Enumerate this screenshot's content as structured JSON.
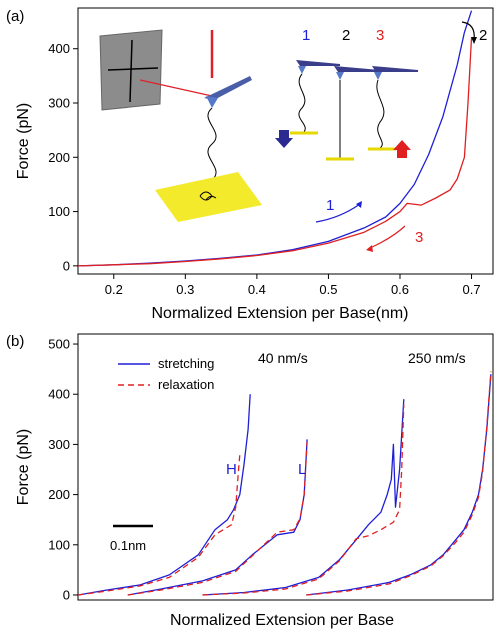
{
  "colors": {
    "stretching": "#1f1fd6",
    "relaxation": "#e02020",
    "black": "#000000",
    "yellow": "#f2ea2a"
  },
  "chart_data": [
    {
      "panel_label": "(a)",
      "type": "line",
      "xlabel": "Normalized Extension per Base(nm)",
      "ylabel": "Force (pN)",
      "xlim": [
        0.15,
        0.73
      ],
      "ylim": [
        -15,
        475
      ],
      "xticks": [
        "0.2",
        "0.3",
        "0.4",
        "0.5",
        "0.6",
        "0.7"
      ],
      "yticks": [
        "0",
        "100",
        "200",
        "300",
        "400"
      ],
      "annotations": {
        "arrow1": "1",
        "arrow2": "2",
        "arrow3": "3"
      },
      "schematic_labels": [
        "1",
        "2",
        "3"
      ],
      "series": [
        {
          "color": "#1f1fd6",
          "x": [
            0.15,
            0.2,
            0.25,
            0.3,
            0.35,
            0.4,
            0.45,
            0.5,
            0.55,
            0.58,
            0.6,
            0.62,
            0.64,
            0.66,
            0.68,
            0.69,
            0.7
          ],
          "y": [
            0,
            2,
            5,
            9,
            14,
            20,
            30,
            45,
            70,
            90,
            115,
            150,
            205,
            275,
            370,
            430,
            470
          ]
        },
        {
          "color": "#e02020",
          "x": [
            0.15,
            0.2,
            0.25,
            0.3,
            0.35,
            0.4,
            0.45,
            0.5,
            0.55,
            0.58,
            0.6,
            0.61,
            0.63,
            0.65,
            0.67,
            0.68,
            0.69,
            0.695,
            0.7
          ],
          "y": [
            0,
            2,
            4,
            8,
            13,
            19,
            28,
            42,
            62,
            82,
            100,
            115,
            112,
            125,
            140,
            160,
            200,
            300,
            420
          ]
        }
      ]
    },
    {
      "panel_label": "(b)",
      "type": "line",
      "xlabel": "Normalized Extension per Base",
      "ylabel": "Force (pN)",
      "xlim": [
        0,
        1
      ],
      "ylim": [
        -10,
        520
      ],
      "yticks": [
        "0",
        "100",
        "200",
        "300",
        "400",
        "500"
      ],
      "legend": {
        "position": "top-left",
        "entries": [
          "stretching",
          "relaxation"
        ]
      },
      "annotations": {
        "rate_slow": "40 nm/s",
        "rate_fast": "250 nm/s",
        "H": "H",
        "L": "L",
        "scale_bar": "0.1nm"
      },
      "series": [
        {
          "name": "stretching",
          "group": "H",
          "color": "#1f1fd6",
          "x": [
            0,
            0.07,
            0.15,
            0.22,
            0.29,
            0.33,
            0.36,
            0.375,
            0.39,
            0.4,
            0.41,
            0.415
          ],
          "y": [
            0,
            10,
            20,
            40,
            80,
            130,
            150,
            170,
            200,
            260,
            330,
            400
          ]
        },
        {
          "name": "relaxation",
          "group": "H",
          "color": "#e02020",
          "x": [
            0,
            0.07,
            0.15,
            0.22,
            0.29,
            0.33,
            0.35,
            0.37,
            0.38,
            0.385,
            0.39
          ],
          "y": [
            0,
            8,
            18,
            35,
            75,
            120,
            130,
            140,
            175,
            230,
            280
          ]
        },
        {
          "name": "stretching",
          "group": "L",
          "color": "#1f1fd6",
          "x": [
            0.12,
            0.2,
            0.3,
            0.38,
            0.42,
            0.48,
            0.52,
            0.535,
            0.545,
            0.552
          ],
          "y": [
            0,
            12,
            28,
            50,
            80,
            120,
            125,
            150,
            200,
            310
          ]
        },
        {
          "name": "relaxation",
          "group": "L",
          "color": "#e02020",
          "x": [
            0.12,
            0.2,
            0.3,
            0.38,
            0.42,
            0.48,
            0.52,
            0.535,
            0.545,
            0.552
          ],
          "y": [
            0,
            10,
            25,
            47,
            78,
            125,
            130,
            152,
            200,
            305
          ]
        },
        {
          "name": "stretching",
          "group": "40 nm/s",
          "color": "#1f1fd6",
          "x": [
            0.3,
            0.4,
            0.5,
            0.58,
            0.63,
            0.67,
            0.7,
            0.73,
            0.745,
            0.755,
            0.76,
            0.765,
            0.775,
            0.785
          ],
          "y": [
            0,
            5,
            15,
            35,
            70,
            110,
            140,
            165,
            200,
            230,
            300,
            175,
            250,
            390
          ]
        },
        {
          "name": "relaxation",
          "group": "40 nm/s",
          "color": "#e02020",
          "x": [
            0.3,
            0.4,
            0.5,
            0.58,
            0.63,
            0.67,
            0.7,
            0.73,
            0.76,
            0.775,
            0.78,
            0.785
          ],
          "y": [
            0,
            4,
            12,
            32,
            68,
            112,
            118,
            130,
            145,
            170,
            250,
            380
          ]
        },
        {
          "name": "stretching",
          "group": "250 nm/s",
          "color": "#1f1fd6",
          "x": [
            0.55,
            0.65,
            0.75,
            0.8,
            0.85,
            0.88,
            0.91,
            0.93,
            0.95,
            0.965,
            0.975,
            0.985,
            0.995
          ],
          "y": [
            0,
            10,
            25,
            40,
            60,
            80,
            110,
            130,
            165,
            200,
            250,
            330,
            440
          ]
        },
        {
          "name": "relaxation",
          "group": "250 nm/s",
          "color": "#e02020",
          "x": [
            0.55,
            0.65,
            0.75,
            0.8,
            0.85,
            0.88,
            0.91,
            0.93,
            0.95,
            0.965,
            0.975,
            0.985,
            0.995
          ],
          "y": [
            0,
            8,
            22,
            38,
            58,
            78,
            105,
            125,
            160,
            195,
            245,
            335,
            445
          ]
        }
      ]
    }
  ]
}
